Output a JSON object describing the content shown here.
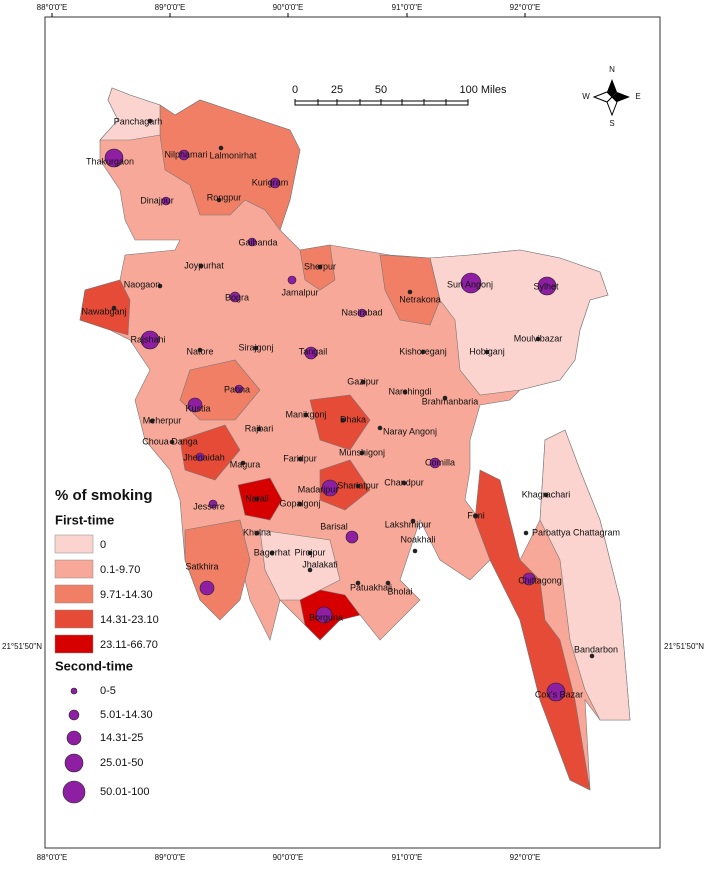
{
  "coordinates": {
    "top": [
      "88°0'0\"E",
      "89°0'0\"E",
      "90°0'0\"E",
      "91°0'0\"E",
      "92°0'0\"E"
    ],
    "bottom": [
      "88°0'0\"E",
      "89°0'0\"E",
      "90°0'0\"E",
      "91°0'0\"E",
      "92°0'0\"E"
    ],
    "left": "21°51'50\"N",
    "right": "21°51'50\"N"
  },
  "scale_bar": {
    "labels": [
      "0",
      "25",
      "50",
      "100 Miles"
    ]
  },
  "compass": {
    "north": "N",
    "south": "S",
    "east": "E",
    "west": "W"
  },
  "legend": {
    "title": "% of smoking",
    "first_time": {
      "title": "First-time",
      "classes": [
        {
          "label": "0",
          "color": "#fbd3cf"
        },
        {
          "label": "0.1-9.70",
          "color": "#f7a898"
        },
        {
          "label": "9.71-14.30",
          "color": "#f17f66"
        },
        {
          "label": "14.31-23.10",
          "color": "#e54b37"
        },
        {
          "label": "23.11-66.70",
          "color": "#d60000"
        }
      ]
    },
    "second_time": {
      "title": "Second-time",
      "color": "#8e1fa3",
      "classes": [
        "0-5",
        "5.01-14.30",
        "14.31-25",
        "25.01-50",
        "50.01-100"
      ]
    }
  },
  "districts": [
    "Panchagarh",
    "Thakurgaon",
    "Nilphamari",
    "Lalmonirhat",
    "Kurigram",
    "Dinajpur",
    "Rongpur",
    "Gaibanda",
    "Joypurhat",
    "Naogaon",
    "Sherpur",
    "Jamalpur",
    "Sun Angonj",
    "Sylhet",
    "Netrakona",
    "Bogra",
    "Nawabganj",
    "Nasirabad",
    "Rajshahi",
    "Natore",
    "Sirajgonj",
    "Tangail",
    "Kishoreganj",
    "Hobiganj",
    "Moulvibazar",
    "Gazipur",
    "Pabna",
    "Narshingdi",
    "Kustia",
    "Brahmanbaria",
    "Manikgonj",
    "Dhaka",
    "Meherpur",
    "Rajbari",
    "Naray Angonj",
    "Choua Danga",
    "Jhenaidah",
    "Faridpur",
    "Munshigonj",
    "Comilla",
    "Magura",
    "Madaripur",
    "Shariatpur",
    "Chandpur",
    "Khagrachari",
    "Jessore",
    "Narail",
    "Gopalgonj",
    "Feni",
    "Khulna",
    "Barisal",
    "Lakshmipur",
    "Noakhali",
    "Parbattya Chattagram",
    "Bagerhat",
    "Pirojpur",
    "Jhalakati",
    "Satkhira",
    "Patuakhali",
    "Bholai",
    "Chittagong",
    "Borguna",
    "Bandarbon",
    "Cox's Bazar"
  ]
}
